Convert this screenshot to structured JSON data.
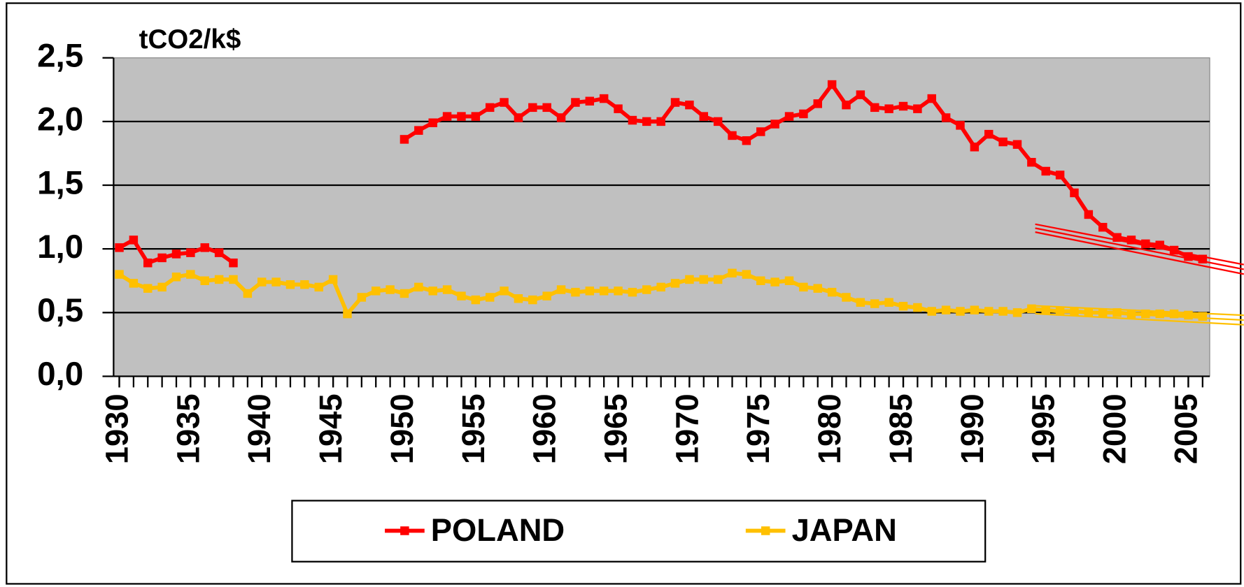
{
  "chart_data": {
    "type": "line",
    "y_axis_label": "tCO2/k$",
    "x": [
      1930,
      1931,
      1932,
      1933,
      1934,
      1935,
      1936,
      1937,
      1938,
      1939,
      1940,
      1941,
      1942,
      1943,
      1944,
      1945,
      1946,
      1947,
      1948,
      1949,
      1950,
      1951,
      1952,
      1953,
      1954,
      1955,
      1956,
      1957,
      1958,
      1959,
      1960,
      1961,
      1962,
      1963,
      1964,
      1965,
      1966,
      1967,
      1968,
      1969,
      1970,
      1971,
      1972,
      1973,
      1974,
      1975,
      1976,
      1977,
      1978,
      1979,
      1980,
      1981,
      1982,
      1983,
      1984,
      1985,
      1986,
      1987,
      1988,
      1989,
      1990,
      1991,
      1992,
      1993,
      1994,
      1995,
      1996,
      1997,
      1998,
      1999,
      2000,
      2001,
      2002,
      2003,
      2004,
      2005,
      2006
    ],
    "series": [
      {
        "name": "POLAND",
        "color": "#ff0000",
        "values": [
          1.01,
          1.07,
          0.89,
          0.93,
          0.96,
          0.97,
          1.01,
          0.97,
          0.89,
          null,
          null,
          null,
          null,
          null,
          null,
          null,
          null,
          null,
          null,
          null,
          1.86,
          1.93,
          1.99,
          2.04,
          2.04,
          2.04,
          2.11,
          2.15,
          2.03,
          2.11,
          2.11,
          2.03,
          2.15,
          2.16,
          2.18,
          2.1,
          2.01,
          2.0,
          2.0,
          2.15,
          2.13,
          2.04,
          2.0,
          1.89,
          1.85,
          1.92,
          1.98,
          2.04,
          2.06,
          2.14,
          2.29,
          2.13,
          2.21,
          2.11,
          2.1,
          2.12,
          2.1,
          2.18,
          2.03,
          1.97,
          1.8,
          1.9,
          1.84,
          1.82,
          1.68,
          1.61,
          1.58,
          1.44,
          1.27,
          1.17,
          1.09,
          1.07,
          1.04,
          1.03,
          0.99,
          0.94,
          0.92
        ]
      },
      {
        "name": "JAPAN",
        "color": "#ffc000",
        "values": [
          0.8,
          0.73,
          0.69,
          0.7,
          0.78,
          0.8,
          0.75,
          0.76,
          0.76,
          0.65,
          0.74,
          0.74,
          0.72,
          0.72,
          0.7,
          0.76,
          0.49,
          0.62,
          0.67,
          0.68,
          0.65,
          0.7,
          0.67,
          0.68,
          0.63,
          0.6,
          0.62,
          0.67,
          0.61,
          0.6,
          0.63,
          0.68,
          0.66,
          0.67,
          0.67,
          0.67,
          0.66,
          0.68,
          0.7,
          0.73,
          0.76,
          0.76,
          0.76,
          0.81,
          0.8,
          0.75,
          0.74,
          0.75,
          0.7,
          0.69,
          0.66,
          0.62,
          0.58,
          0.57,
          0.58,
          0.55,
          0.54,
          0.51,
          0.52,
          0.51,
          0.52,
          0.51,
          0.51,
          0.5,
          0.53,
          0.52,
          0.51,
          0.51,
          0.5,
          0.5,
          0.5,
          0.49,
          0.49,
          0.49,
          0.49,
          0.48,
          0.47
        ]
      }
    ],
    "xlim": [
      1929.6,
      2006.5
    ],
    "xticks": [
      1930,
      1935,
      1940,
      1945,
      1950,
      1955,
      1960,
      1965,
      1970,
      1975,
      1980,
      1985,
      1990,
      1995,
      2000,
      2005
    ],
    "ylim": [
      0,
      2.5
    ],
    "yticks": [
      {
        "value": 0,
        "label": "0,0"
      },
      {
        "value": 0.5,
        "label": "0,5"
      },
      {
        "value": 1,
        "label": "1,0"
      },
      {
        "value": 1.5,
        "label": "1,5"
      },
      {
        "value": 2,
        "label": "2,0"
      },
      {
        "value": 2.5,
        "label": "2,5"
      }
    ],
    "grid": true,
    "plot_background": "#c0c0c0",
    "legend": "bottom"
  }
}
